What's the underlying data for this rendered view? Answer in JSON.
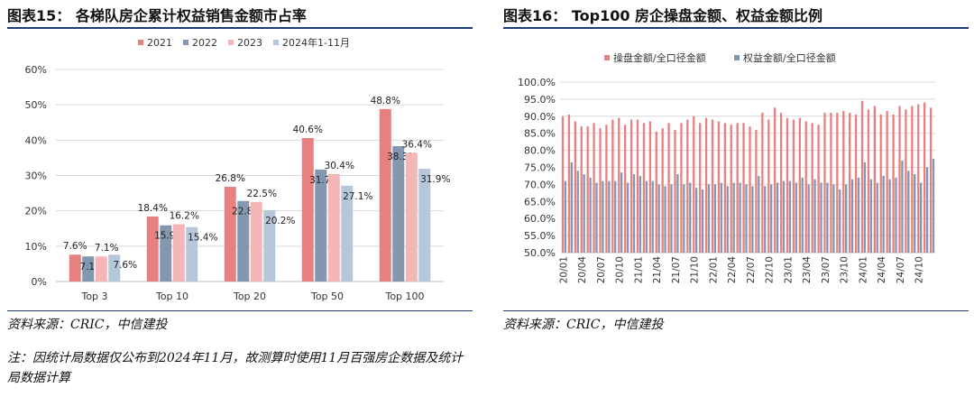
{
  "left": {
    "title": "图表15：  各梯队房企累计权益销售金额市占率",
    "source": "资料来源：CRIC，中信建投",
    "note": "注：因统计局数据仅公布到2024年11月，故测算时使用11月百强房企数据及统计局数据计算",
    "chart_data": {
      "type": "bar",
      "categories": [
        "Top 3",
        "Top 10",
        "Top 20",
        "Top 50",
        "Top 100"
      ],
      "series": [
        {
          "name": "2021",
          "color": "#e88080",
          "values": [
            7.6,
            18.4,
            26.8,
            40.6,
            48.8
          ],
          "labels": [
            "7.6%",
            "18.4%",
            "26.8%",
            "40.6%",
            "48.8%"
          ]
        },
        {
          "name": "2022",
          "color": "#8497b0",
          "values": [
            7.1,
            15.9,
            22.8,
            31.7,
            38.3
          ],
          "labels": [
            "7.1%",
            "15.9%",
            "22.8%",
            "31.7%",
            "38.3%"
          ]
        },
        {
          "name": "2023",
          "color": "#f4b6b6",
          "values": [
            7.1,
            16.2,
            22.5,
            30.4,
            36.4
          ],
          "labels": [
            "7.1%",
            "16.2%",
            "22.5%",
            "30.4%",
            "36.4%"
          ]
        },
        {
          "name": "2024年1-11月",
          "color": "#b7c7da",
          "values": [
            7.6,
            15.4,
            20.2,
            27.1,
            31.9
          ],
          "labels": [
            "7.6%",
            "15.4%",
            "20.2%",
            "27.1%",
            "31.9%"
          ]
        }
      ],
      "ylim": [
        0,
        60
      ],
      "yticks": [
        "0%",
        "10%",
        "20%",
        "30%",
        "40%",
        "50%",
        "60%"
      ],
      "grid": true,
      "legend": "top"
    }
  },
  "right": {
    "title": "图表16：  Top100 房企操盘金额、权益金额比例",
    "source": "资料来源：CRIC，中信建投",
    "chart_data": {
      "type": "bar",
      "x": [
        "20/01",
        "20/02",
        "20/03",
        "20/04",
        "20/05",
        "20/06",
        "20/07",
        "20/08",
        "20/09",
        "20/10",
        "20/11",
        "20/12",
        "21/01",
        "21/02",
        "21/03",
        "21/04",
        "21/05",
        "21/06",
        "21/07",
        "21/08",
        "21/09",
        "21/10",
        "21/11",
        "21/12",
        "22/01",
        "22/02",
        "22/03",
        "22/04",
        "22/05",
        "22/06",
        "22/07",
        "22/08",
        "22/09",
        "22/10",
        "22/11",
        "22/12",
        "23/01",
        "23/02",
        "23/03",
        "23/04",
        "23/05",
        "23/06",
        "23/07",
        "23/08",
        "23/09",
        "23/10",
        "23/11",
        "23/12",
        "24/01",
        "24/02",
        "24/03",
        "24/04",
        "24/05",
        "24/06",
        "24/07",
        "24/08",
        "24/09",
        "24/10",
        "24/11",
        "24/12"
      ],
      "xticklabels": [
        "20/01",
        "20/04",
        "20/07",
        "20/10",
        "21/01",
        "21/04",
        "21/07",
        "21/10",
        "22/01",
        "22/04",
        "22/07",
        "22/10",
        "23/01",
        "23/04",
        "23/07",
        "23/10",
        "24/01",
        "24/04",
        "24/07",
        "24/10"
      ],
      "series": [
        {
          "name": "操盘金额/全口径金额",
          "color": "#e88080",
          "values": [
            90.0,
            90.5,
            88.5,
            87.0,
            87.0,
            88.0,
            86.5,
            87.5,
            89.0,
            89.5,
            87.5,
            89.0,
            89.0,
            88.0,
            88.5,
            85.5,
            86.5,
            88.0,
            86.0,
            88.0,
            89.0,
            90.0,
            88.0,
            89.5,
            89.0,
            88.5,
            88.0,
            87.5,
            88.0,
            88.0,
            87.0,
            86.0,
            91.0,
            89.0,
            92.5,
            91.0,
            89.5,
            89.0,
            89.5,
            88.5,
            88.0,
            87.5,
            91.0,
            91.0,
            91.0,
            91.5,
            91.0,
            90.5,
            94.5,
            92.0,
            93.0,
            90.5,
            91.5,
            90.5,
            93.0,
            92.0,
            93.0,
            93.5,
            94.0,
            92.5
          ]
        },
        {
          "name": "权益金额/全口径金额",
          "color": "#8497b0",
          "values": [
            71.0,
            76.5,
            74.0,
            73.0,
            72.0,
            70.5,
            71.0,
            71.0,
            71.0,
            73.5,
            70.5,
            73.0,
            72.5,
            71.0,
            71.0,
            70.0,
            69.5,
            70.0,
            73.0,
            70.0,
            70.5,
            69.0,
            68.5,
            70.0,
            70.0,
            70.5,
            69.5,
            70.5,
            70.5,
            70.0,
            69.5,
            72.5,
            69.5,
            70.0,
            70.5,
            71.0,
            71.0,
            70.5,
            72.0,
            70.0,
            71.5,
            70.5,
            70.5,
            70.0,
            68.5,
            70.0,
            71.5,
            72.0,
            76.5,
            71.5,
            70.5,
            72.5,
            71.5,
            72.0,
            77.0,
            74.0,
            73.0,
            70.5,
            75.0,
            77.5
          ]
        }
      ],
      "ylim": [
        50,
        100
      ],
      "yticks": [
        "50.0%",
        "55.0%",
        "60.0%",
        "65.0%",
        "70.0%",
        "75.0%",
        "80.0%",
        "85.0%",
        "90.0%",
        "95.0%",
        "100.0%"
      ],
      "grid": true,
      "legend": "top"
    }
  }
}
